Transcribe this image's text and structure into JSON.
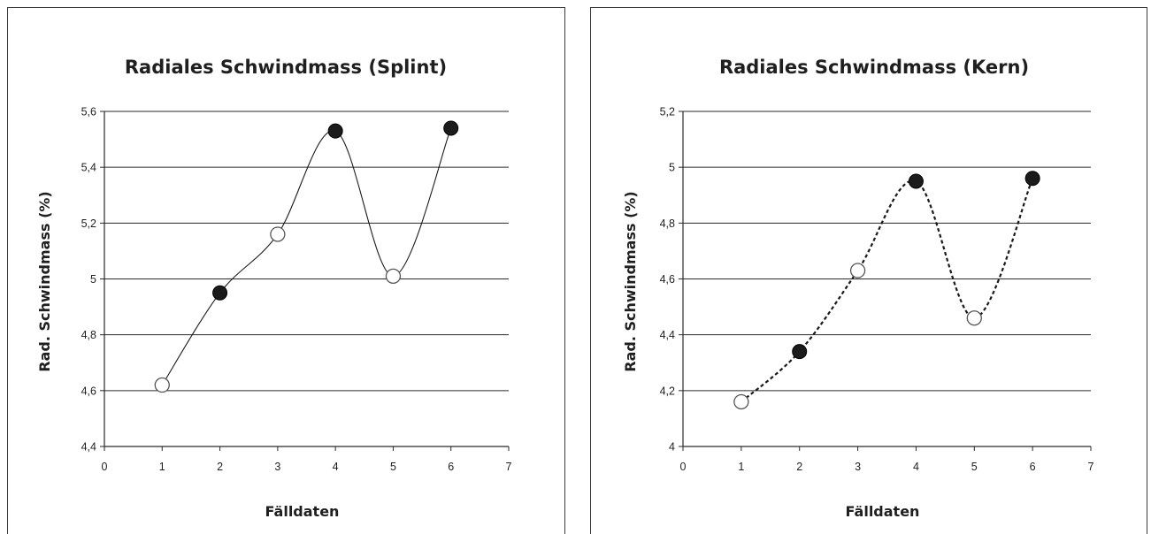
{
  "chart_data": [
    {
      "type": "line",
      "title": "Radiales Schwindmass (Splint)",
      "xlabel": "Fälldaten",
      "ylabel": "Rad. Schwindmass (%)",
      "xlim": [
        0,
        7
      ],
      "ylim": [
        4.4,
        5.6
      ],
      "xticks": [
        "0",
        "1",
        "2",
        "3",
        "4",
        "5",
        "6",
        "7"
      ],
      "yticks": [
        "4,4",
        "4,6",
        "4,8",
        "5",
        "5,2",
        "5,4",
        "5,6"
      ],
      "grid": "horizontal",
      "line_style": "solid",
      "series": [
        {
          "x": [
            1,
            2,
            3,
            4,
            5,
            6
          ],
          "values": [
            4.62,
            4.95,
            5.16,
            5.53,
            5.01,
            5.54
          ],
          "marker_fill": [
            "open",
            "filled",
            "open",
            "filled",
            "open",
            "filled"
          ]
        }
      ]
    },
    {
      "type": "line",
      "title": "Radiales Schwindmass (Kern)",
      "xlabel": "Fälldaten",
      "ylabel": "Rad. Schwindmass (%)",
      "xlim": [
        0,
        7
      ],
      "ylim": [
        4.0,
        5.2
      ],
      "xticks": [
        "0",
        "1",
        "2",
        "3",
        "4",
        "5",
        "6",
        "7"
      ],
      "yticks": [
        "4",
        "4,2",
        "4,4",
        "4,6",
        "4,8",
        "5",
        "5,2"
      ],
      "grid": "horizontal",
      "line_style": "dashed",
      "series": [
        {
          "x": [
            1,
            2,
            3,
            4,
            5,
            6
          ],
          "values": [
            4.16,
            4.34,
            4.63,
            4.95,
            4.46,
            4.96
          ],
          "marker_fill": [
            "open",
            "filled",
            "open",
            "filled",
            "open",
            "filled"
          ]
        }
      ]
    }
  ]
}
